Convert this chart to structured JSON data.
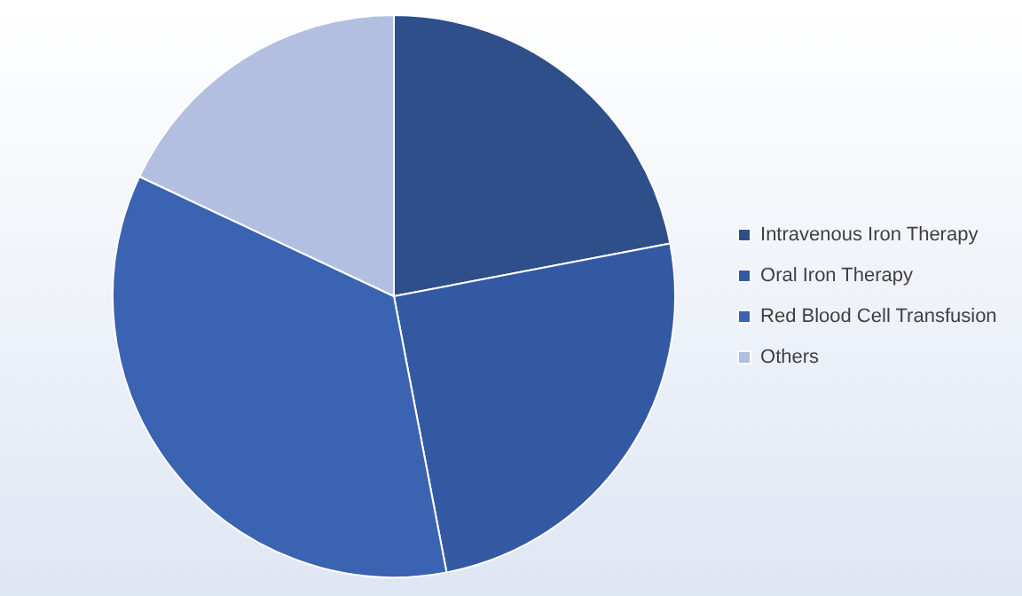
{
  "chart_data": {
    "type": "pie",
    "categories": [
      "Intravenous Iron Therapy",
      "Oral Iron Therapy",
      "Red Blood Cell Transfusion",
      "Others"
    ],
    "values": [
      22,
      25,
      35,
      18
    ],
    "colors": [
      "#2f4f8a",
      "#3459a3",
      "#3a63b2",
      "#b3bfe0"
    ],
    "legend": "right"
  }
}
